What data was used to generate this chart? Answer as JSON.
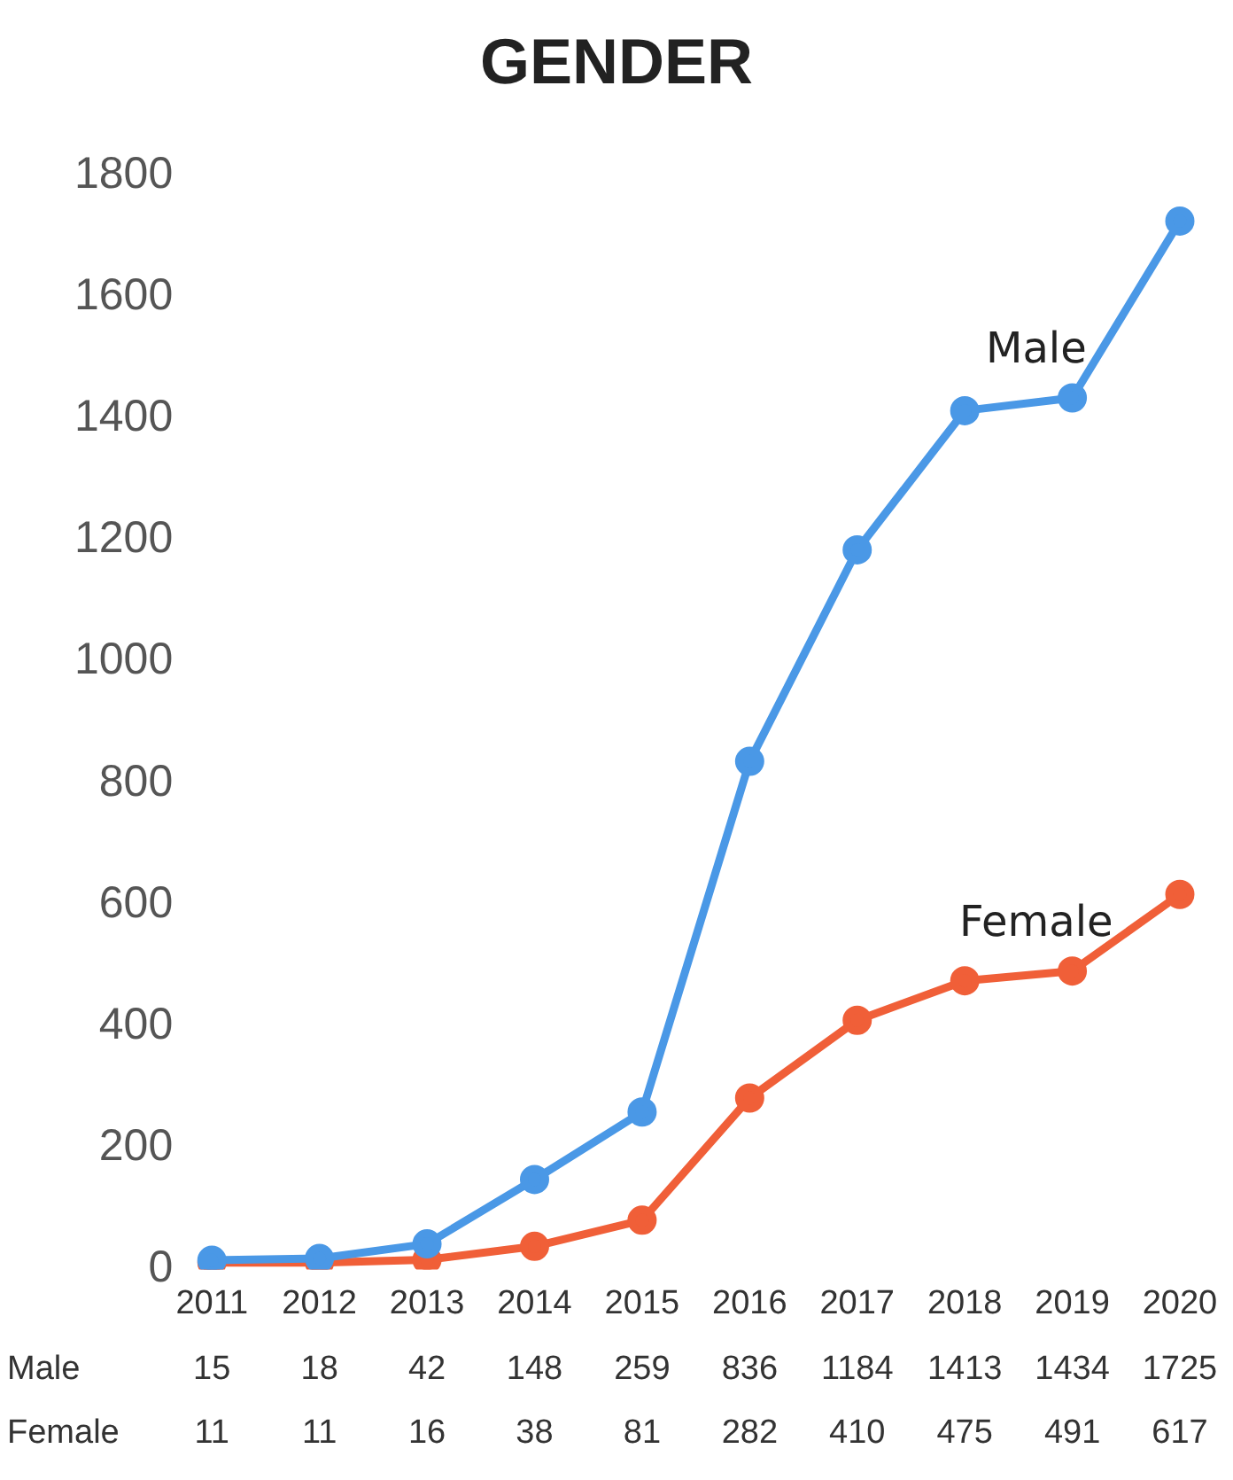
{
  "chart_data": {
    "type": "line",
    "title": "GENDER",
    "categories": [
      "2011",
      "2012",
      "2013",
      "2014",
      "2015",
      "2016",
      "2017",
      "2018",
      "2019",
      "2020"
    ],
    "series": [
      {
        "name": "Male",
        "color": "#4a98e6",
        "values": [
          15,
          18,
          42,
          148,
          259,
          836,
          1184,
          1413,
          1434,
          1725
        ]
      },
      {
        "name": "Female",
        "color": "#f05f38",
        "values": [
          11,
          11,
          16,
          38,
          81,
          282,
          410,
          475,
          491,
          617
        ]
      }
    ],
    "ylim": [
      0,
      1800
    ],
    "yticks": [
      0,
      200,
      400,
      600,
      800,
      1000,
      1200,
      1400,
      1600,
      1800
    ],
    "grid": false,
    "legend": false,
    "marker": "circle",
    "line_style": "solid",
    "data_labels": true
  }
}
